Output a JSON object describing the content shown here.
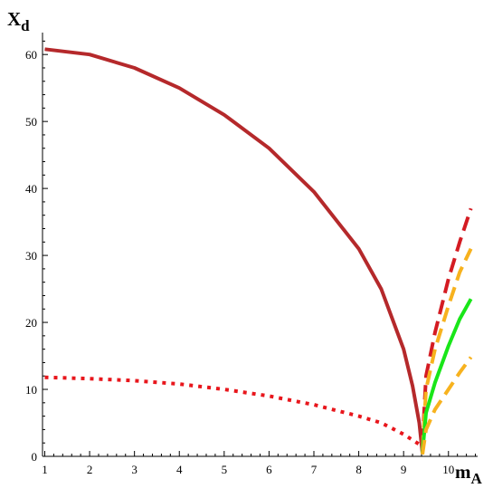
{
  "chart_data": {
    "type": "line",
    "title": "",
    "ylabel": {
      "main": "X",
      "sub": "d"
    },
    "xlabel": {
      "main": "m",
      "sub": "A"
    },
    "xlim": [
      0.95,
      10.65
    ],
    "ylim": [
      0,
      63
    ],
    "x_ticks": [
      1,
      2,
      3,
      4,
      5,
      6,
      7,
      8,
      9,
      10
    ],
    "y_ticks": [
      0,
      10,
      20,
      30,
      40,
      50,
      60
    ],
    "grid": false,
    "colors": {
      "solid_red": "#b5292b",
      "dotted_red": "#e8161c",
      "dashed_red": "#d41b22",
      "green": "#19e619",
      "orange": "#f7b21e",
      "axis": "#000000"
    },
    "series": [
      {
        "key": "upper-solid",
        "color_key": "solid_red",
        "style": "solid",
        "points": [
          [
            1.0,
            60.8
          ],
          [
            2.0,
            60.0
          ],
          [
            3.0,
            58.0
          ],
          [
            4.0,
            55.0
          ],
          [
            5.0,
            51.0
          ],
          [
            6.0,
            46.0
          ],
          [
            7.0,
            39.5
          ],
          [
            8.0,
            31.0
          ],
          [
            8.5,
            25.0
          ],
          [
            9.0,
            16.0
          ],
          [
            9.2,
            10.5
          ],
          [
            9.35,
            5.0
          ],
          [
            9.42,
            0.5
          ]
        ]
      },
      {
        "key": "lower-dotted",
        "color_key": "dotted_red",
        "style": "dotted",
        "points": [
          [
            1.0,
            11.8
          ],
          [
            2.0,
            11.6
          ],
          [
            3.0,
            11.3
          ],
          [
            4.0,
            10.8
          ],
          [
            5.0,
            10.0
          ],
          [
            6.0,
            9.0
          ],
          [
            7.0,
            7.7
          ],
          [
            8.0,
            6.0
          ],
          [
            8.5,
            5.0
          ],
          [
            9.0,
            3.3
          ],
          [
            9.35,
            1.8
          ]
        ]
      },
      {
        "key": "right-dashed-red",
        "color_key": "dashed_red",
        "style": "dashed",
        "points": [
          [
            9.42,
            2.0
          ],
          [
            9.5,
            12.0
          ],
          [
            9.7,
            18.5
          ],
          [
            10.0,
            26.5
          ],
          [
            10.25,
            32.0
          ],
          [
            10.5,
            37.0
          ]
        ]
      },
      {
        "key": "right-dashed-orange-upper",
        "color_key": "orange",
        "style": "dashed",
        "points": [
          [
            9.42,
            1.0
          ],
          [
            9.5,
            10.0
          ],
          [
            9.7,
            16.0
          ],
          [
            10.0,
            22.5
          ],
          [
            10.25,
            27.5
          ],
          [
            10.5,
            31.0
          ]
        ]
      },
      {
        "key": "right-solid-green",
        "color_key": "green",
        "style": "solid",
        "points": [
          [
            9.42,
            0.5
          ],
          [
            9.5,
            6.5
          ],
          [
            9.7,
            11.0
          ],
          [
            10.0,
            16.5
          ],
          [
            10.25,
            20.5
          ],
          [
            10.5,
            23.5
          ]
        ]
      },
      {
        "key": "right-dashed-orange-lower",
        "color_key": "orange",
        "style": "dashed",
        "points": [
          [
            9.42,
            0.3
          ],
          [
            9.5,
            4.0
          ],
          [
            9.7,
            7.0
          ],
          [
            10.0,
            10.0
          ],
          [
            10.25,
            12.5
          ],
          [
            10.5,
            14.8
          ]
        ]
      }
    ]
  }
}
